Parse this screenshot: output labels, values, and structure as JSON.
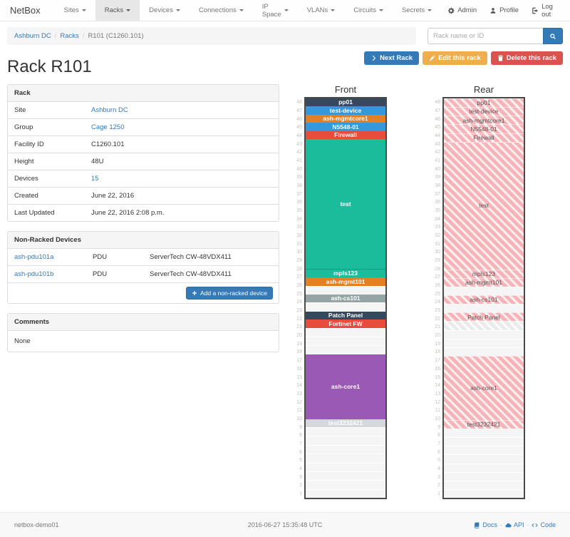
{
  "navbar": {
    "brand": "NetBox",
    "items": [
      {
        "label": "Sites"
      },
      {
        "label": "Racks"
      },
      {
        "label": "Devices"
      },
      {
        "label": "Connections"
      },
      {
        "label": "IP Space"
      },
      {
        "label": "VLANs"
      },
      {
        "label": "Circuits"
      },
      {
        "label": "Secrets"
      }
    ],
    "active_item": "Racks",
    "right_items": [
      {
        "label": "Admin",
        "icon": "gear"
      },
      {
        "label": "Profile",
        "icon": "user"
      },
      {
        "label": "Log out",
        "icon": "logout"
      }
    ]
  },
  "breadcrumb": {
    "items": [
      {
        "label": "Ashburn DC",
        "is_link": true
      },
      {
        "label": "Racks",
        "is_link": true
      },
      {
        "label": "R101 (C1260.101)",
        "is_link": false
      }
    ]
  },
  "search": {
    "placeholder": "Rack name or ID"
  },
  "actions": {
    "next_label": "Next Rack",
    "edit_label": "Edit this rack",
    "delete_label": "Delete this rack"
  },
  "page_title": "Rack R101",
  "rack_panel": {
    "title": "Rack",
    "rows": [
      {
        "label": "Site",
        "value": "Ashburn DC",
        "is_link": true
      },
      {
        "label": "Group",
        "value": "Cage 1250",
        "is_link": true
      },
      {
        "label": "Facility ID",
        "value": "C1260.101",
        "is_link": false
      },
      {
        "label": "Height",
        "value": "48U",
        "is_link": false
      },
      {
        "label": "Devices",
        "value": "15",
        "is_link": true
      },
      {
        "label": "Created",
        "value": "June 22, 2016",
        "is_link": false
      },
      {
        "label": "Last Updated",
        "value": "June 22, 2016 2:08 p.m.",
        "is_link": false
      }
    ]
  },
  "nonracked_panel": {
    "title": "Non-Racked Devices",
    "rows": [
      {
        "name": "ash-pdu101a",
        "role": "PDU",
        "device_type": "ServerTech CW-48VDX411"
      },
      {
        "name": "ash-pdu101b",
        "role": "PDU",
        "device_type": "ServerTech CW-48VDX411"
      }
    ],
    "add_button_label": "Add a non-racked device"
  },
  "comments_panel": {
    "title": "Comments",
    "body": "None"
  },
  "elevations": {
    "front": {
      "title": "Front",
      "total_units": 48,
      "blocks": [
        {
          "type": "device",
          "label": "pp01",
          "units": 1,
          "top_unit": 48,
          "color": "#34495e"
        },
        {
          "type": "device",
          "label": "test-device",
          "units": 1,
          "top_unit": 47,
          "color": "#3498db"
        },
        {
          "type": "device",
          "label": "ash-mgmtcore1",
          "units": 1,
          "top_unit": 46,
          "color": "#e67e22"
        },
        {
          "type": "device",
          "label": "N5548-01",
          "units": 1,
          "top_unit": 45,
          "color": "#3498db"
        },
        {
          "type": "device",
          "label": "Firewall",
          "units": 1,
          "top_unit": 44,
          "color": "#e74c3c"
        },
        {
          "type": "device",
          "label": "test",
          "units": 16,
          "top_unit": 43,
          "color": "#1abc9c"
        },
        {
          "type": "device",
          "label": "mpls123",
          "units": 1,
          "top_unit": 27,
          "color": "#1abc9c",
          "separator": true
        },
        {
          "type": "device",
          "label": "ash-mgmt101",
          "units": 1,
          "top_unit": 26,
          "color": "#e67e22"
        },
        {
          "type": "empty",
          "units": 1
        },
        {
          "type": "device",
          "label": "ash-cs101",
          "units": 1,
          "top_unit": 24,
          "color": "#95a5a6"
        },
        {
          "type": "empty",
          "units": 1
        },
        {
          "type": "device",
          "label": "Patch Panel",
          "units": 1,
          "top_unit": 22,
          "color": "#34495e"
        },
        {
          "type": "device",
          "label": "Fortinet FW",
          "units": 1,
          "top_unit": 21,
          "color": "#e74c3c"
        },
        {
          "type": "empty",
          "units": 3
        },
        {
          "type": "device",
          "label": "ash-core1",
          "units": 8,
          "top_unit": 17,
          "color": "#9b59b6"
        },
        {
          "type": "device",
          "label": "test3232421",
          "units": 1,
          "top_unit": 9,
          "color": "#d5d8da"
        },
        {
          "type": "empty",
          "units": 8
        }
      ]
    },
    "rear": {
      "title": "Rear",
      "total_units": 48,
      "blocks": [
        {
          "type": "rear-device",
          "label": "pp01",
          "units": 1,
          "top_unit": 48
        },
        {
          "type": "rear-device",
          "label": "test-device",
          "units": 1,
          "top_unit": 47
        },
        {
          "type": "rear-device",
          "label": "ash-mgmtcore1",
          "units": 1,
          "top_unit": 46
        },
        {
          "type": "rear-device",
          "label": "N5548-01",
          "units": 1,
          "top_unit": 45
        },
        {
          "type": "rear-device",
          "label": "Firewall",
          "units": 1,
          "top_unit": 44
        },
        {
          "type": "rear-device",
          "label": "test",
          "units": 16,
          "top_unit": 43
        },
        {
          "type": "rear-device",
          "label": "mpls123",
          "units": 1,
          "top_unit": 27
        },
        {
          "type": "rear-device",
          "label": "ash-mgmt101",
          "units": 1,
          "top_unit": 26
        },
        {
          "type": "empty",
          "units": 1
        },
        {
          "type": "rear-device",
          "label": "ash-cs101",
          "units": 1,
          "top_unit": 24
        },
        {
          "type": "empty",
          "units": 1
        },
        {
          "type": "rear-device",
          "label": "Patch Panel",
          "units": 1,
          "top_unit": 22
        },
        {
          "type": "hatch-gray",
          "units": 1,
          "top_unit": 21
        },
        {
          "type": "empty",
          "units": 3
        },
        {
          "type": "rear-device",
          "label": "ash-core1",
          "units": 8,
          "top_unit": 17
        },
        {
          "type": "rear-device",
          "label": "test3232421",
          "units": 1,
          "top_unit": 9
        },
        {
          "type": "empty",
          "units": 8
        }
      ]
    }
  },
  "footer": {
    "hostname": "netbox-demo01",
    "timestamp": "2016-06-27 15:35:48 UTC",
    "links": [
      {
        "label": "Docs",
        "icon": "book"
      },
      {
        "label": "API",
        "icon": "cloud"
      },
      {
        "label": "Code",
        "icon": "code"
      }
    ]
  },
  "colors": {
    "link": "#337ab7",
    "btn_primary": "#337ab7",
    "btn_warning": "#f0ad4e",
    "btn_danger": "#d9534f",
    "rear_hatch_pink": "#f6b3b8",
    "rear_hatch_base": "#fdf0f0",
    "hatch_gray": "#ebebeb",
    "rack_border": "#4a4a4a"
  }
}
